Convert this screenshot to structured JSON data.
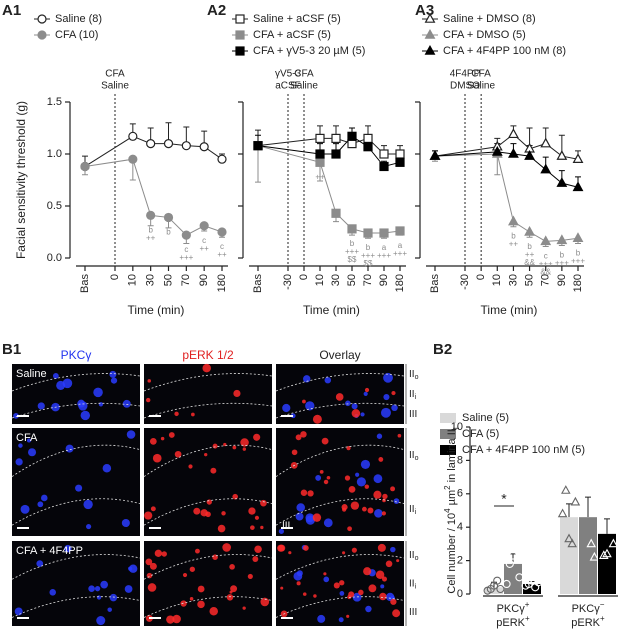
{
  "chart_data": [
    {
      "type": "line",
      "panel": "A1",
      "ylabel": "Facial sensitivity threshold (g)",
      "xlabel": "Time (min)",
      "xticks": [
        "Bas",
        "0",
        "10",
        "30",
        "50",
        "70",
        "90",
        "180"
      ],
      "x": [
        "Bas",
        "10",
        "30",
        "50",
        "70",
        "90",
        "180"
      ],
      "ylim": [
        0,
        1.5
      ],
      "yticks": [
        {
          "value": 0,
          "label": "0.0"
        },
        {
          "value": 0.5,
          "label": "0.5"
        },
        {
          "value": 1,
          "label": "1.0"
        },
        {
          "value": 1.5,
          "label": "1.5"
        }
      ],
      "show_ytick_labels": true,
      "events": [
        {
          "at": "0",
          "label": [
            "CFA",
            "Saline"
          ]
        }
      ],
      "series": [
        {
          "name": "Saline (8)",
          "color": "#222222",
          "marker": "circle",
          "filled": false,
          "error_direction": "up",
          "values": [
            0.88,
            1.17,
            1.1,
            1.1,
            1.08,
            1.07,
            0.95
          ],
          "errors": [
            0.1,
            0.12,
            0.15,
            0.2,
            0.18,
            0.15,
            0.05
          ]
        },
        {
          "name": "CFA (10)",
          "color": "#8c8c8c",
          "marker": "circle",
          "filled": true,
          "error_direction": "down",
          "values": [
            0.88,
            0.95,
            0.41,
            0.39,
            0.22,
            0.31,
            0.25
          ],
          "errors": [
            0.08,
            0.2,
            0.1,
            0.1,
            0.08,
            0.05,
            0.05
          ],
          "stats": [
            null,
            null,
            [
              "b",
              "++"
            ],
            [
              "b"
            ],
            [
              "c",
              "+++"
            ],
            [
              "c",
              "++"
            ],
            [
              "c",
              "++"
            ]
          ]
        }
      ]
    },
    {
      "type": "line",
      "panel": "A2",
      "xlabel": "Time (min)",
      "xticks": [
        "Bas",
        "-30",
        "0",
        "10",
        "30",
        "50",
        "70",
        "90",
        "180"
      ],
      "x": [
        "Bas",
        "10",
        "30",
        "50",
        "70",
        "90",
        "180"
      ],
      "ylim": [
        0,
        1.5
      ],
      "yticks": [
        0,
        0.5,
        1,
        1.5
      ],
      "show_ytick_labels": false,
      "events": [
        {
          "at": "-30",
          "label": [
            "γV5-3",
            "aCSF"
          ]
        },
        {
          "at": "0",
          "label": [
            "CFA",
            "Saline"
          ]
        }
      ],
      "series": [
        {
          "name": "Saline + aCSF (5)",
          "color": "#222222",
          "marker": "square",
          "filled": false,
          "error_direction": "up",
          "values": [
            1.08,
            1.15,
            1.15,
            1.1,
            1.15,
            1.0,
            1.0
          ],
          "errors": [
            0.15,
            0.12,
            0.12,
            0.05,
            0.12,
            0.08,
            0.08
          ]
        },
        {
          "name": "CFA + aCSF (5)",
          "color": "#8c8c8c",
          "marker": "square",
          "filled": true,
          "error_direction": "down",
          "values": [
            1.08,
            0.92,
            0.43,
            0.28,
            0.24,
            0.24,
            0.26
          ],
          "errors": [
            0.35,
            0.18,
            0.08,
            0.06,
            0.05,
            0.05,
            0.04
          ],
          "stats": [
            null,
            [
              "++"
            ],
            null,
            [
              "b",
              "+++",
              "$$"
            ],
            [
              "b",
              "+++",
              "$$"
            ],
            [
              "a",
              "+++"
            ],
            [
              "a",
              "+++"
            ]
          ]
        },
        {
          "name": "CFA + γV5-3 20 µM (5)",
          "color": "#000000",
          "marker": "square",
          "filled": true,
          "error_direction": "up",
          "values": [
            1.08,
            1.0,
            1.0,
            1.17,
            1.07,
            0.88,
            0.92
          ],
          "errors": [
            0.1,
            0.1,
            0.1,
            0.08,
            0.1,
            0.05,
            0.05
          ]
        }
      ]
    },
    {
      "type": "line",
      "panel": "A3",
      "xlabel": "Time (min)",
      "xticks": [
        "Bas",
        "-30",
        "0",
        "10",
        "30",
        "50",
        "70",
        "90",
        "180"
      ],
      "x": [
        "Bas",
        "10",
        "30",
        "50",
        "70",
        "90",
        "180"
      ],
      "ylim": [
        0,
        1.5
      ],
      "yticks": [
        0,
        0.5,
        1,
        1.5
      ],
      "show_ytick_labels": false,
      "events": [
        {
          "at": "-30",
          "label": [
            "4F4PP",
            "DMSO"
          ]
        },
        {
          "at": "0",
          "label": [
            "CFA",
            "Saline"
          ]
        }
      ],
      "series": [
        {
          "name": "Saline + DMSO (8)",
          "color": "#222222",
          "marker": "triangle",
          "filled": false,
          "error_direction": "up",
          "values": [
            0.98,
            1.07,
            1.19,
            1.05,
            1.1,
            0.98,
            0.95
          ],
          "errors": [
            0.05,
            0.08,
            0.08,
            0.2,
            0.15,
            0.2,
            0.08
          ]
        },
        {
          "name": "CFA + DMSO (5)",
          "color": "#8c8c8c",
          "marker": "triangle",
          "filled": true,
          "error_direction": "down",
          "values": [
            0.98,
            1.0,
            0.35,
            0.25,
            0.16,
            0.17,
            0.19
          ],
          "errors": [
            0.05,
            0.2,
            0.05,
            0.05,
            0.05,
            0.05,
            0.05
          ],
          "stats": [
            null,
            null,
            [
              "b",
              "++"
            ],
            [
              "b",
              "++",
              "&&"
            ],
            [
              "c",
              "+++",
              "&&"
            ],
            [
              "b",
              "+++"
            ],
            [
              "b",
              "+++"
            ]
          ]
        },
        {
          "name": "CFA + 4F4PP 100 nM (8)",
          "color": "#000000",
          "marker": "triangle",
          "filled": true,
          "error_direction": "up",
          "values": [
            0.98,
            1.02,
            1.0,
            0.98,
            0.85,
            0.72,
            0.68
          ],
          "errors": [
            0.05,
            0.08,
            0.1,
            0.1,
            0.12,
            0.12,
            0.1
          ]
        }
      ]
    },
    {
      "type": "bar",
      "panel": "B2",
      "ylabel": [
        {
          "text": "Cell number / 10"
        },
        {
          "sup": "4"
        },
        {
          "text": " µm"
        },
        {
          "sup": "2"
        },
        {
          "text": " in lamina II"
        },
        {
          "sub": "i"
        }
      ],
      "categories": [
        [
          {
            "text": "PKCγ",
            "sup": "+"
          },
          {
            "text": "pERK",
            "sup": "+"
          }
        ],
        [
          {
            "text": "PKCγ",
            "sup": "−"
          },
          {
            "text": "pERK",
            "sup": "+"
          }
        ]
      ],
      "point_markers": [
        "circle",
        "triangle"
      ],
      "ylim": [
        0,
        10
      ],
      "yticks": [
        0,
        2,
        4,
        6,
        8,
        10
      ],
      "significance": "*",
      "series": [
        {
          "name": "Saline (5)",
          "color": "#d9d9d9",
          "values": [
            0.4,
            4.6
          ],
          "errors": [
            0.3,
            0.8
          ],
          "points": [
            [
              0.2,
              0.3,
              0.5,
              0.8,
              0.3
            ],
            [
              4.8,
              6.2,
              3.3,
              3.0,
              5.5
            ]
          ]
        },
        {
          "name": "CFA (5)",
          "color": "#808080",
          "values": [
            1.8,
            4.6
          ],
          "errors": [
            0.6,
            1.2
          ],
          "points": [
            [
              0.6,
              1.8,
              2.3,
              4.5,
              1.0
            ],
            [
              7.7,
              7.5,
              6.6,
              3.0,
              2.2
            ]
          ]
        },
        {
          "name": "CFA + 4F4PP 100 nM (5)",
          "color": "#000000",
          "values": [
            0.6,
            3.6
          ],
          "errors": [
            0.15,
            0.9
          ],
          "points": [
            [
              0.5,
              0.6,
              0.8,
              0.4,
              0.7
            ],
            [
              6.4,
              2.3,
              2.4,
              5.2,
              3.0
            ]
          ]
        }
      ]
    }
  ],
  "micrographs": {
    "panel": "B1",
    "columns": [
      {
        "label": "PKCγ",
        "color": "#2233ee"
      },
      {
        "label": "pERK 1/2",
        "color": "#e02020"
      },
      {
        "label": "Overlay",
        "color": "#222222"
      }
    ],
    "rows": [
      {
        "label": "Saline",
        "layers": [
          {
            "main": "II",
            "sub": "o"
          },
          {
            "main": "II",
            "sub": "i"
          },
          {
            "main": "III"
          }
        ]
      },
      {
        "label": "CFA",
        "layers": [
          {
            "main": "II",
            "sub": "o"
          },
          {
            "main": "II",
            "sub": "i"
          }
        ],
        "inset": "III"
      },
      {
        "label": "CFA + 4F4PP",
        "layers": [
          {
            "main": "II",
            "sub": "o"
          },
          {
            "main": "II",
            "sub": "i"
          },
          {
            "main": "III"
          }
        ]
      }
    ]
  }
}
